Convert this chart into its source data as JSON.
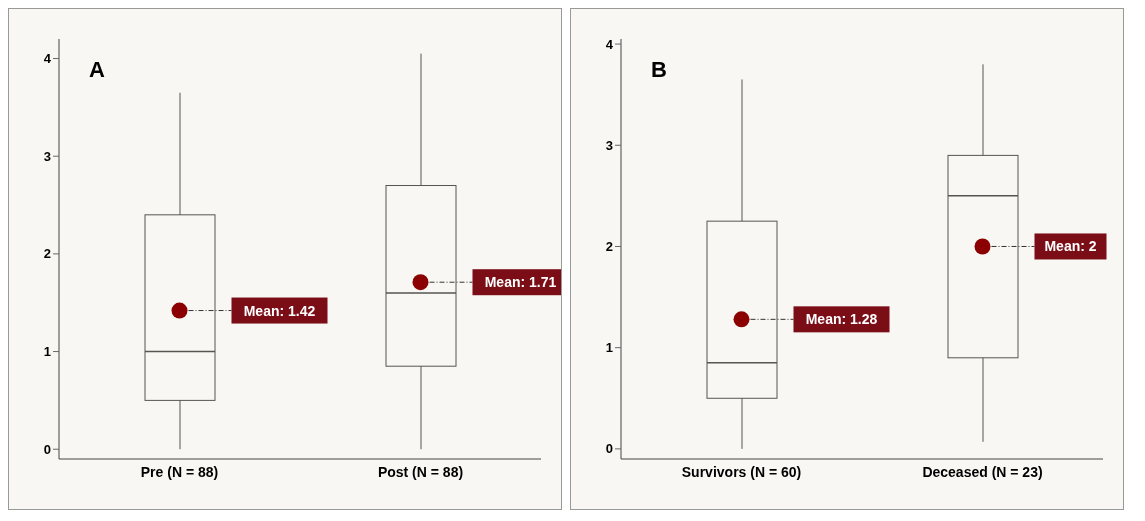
{
  "chart_data": [
    {
      "type": "box",
      "title": "A",
      "categories": [
        "Pre (N = 88)",
        "Post (N = 88)"
      ],
      "ylim": [
        -0.1,
        4.2
      ],
      "yticks": [
        0,
        1,
        2,
        3,
        4
      ],
      "grid": false,
      "boxes": [
        {
          "low": 0,
          "q1": 0.5,
          "median": 1.0,
          "q3": 2.4,
          "high": 3.65,
          "mean": 1.42
        },
        {
          "low": 0,
          "q1": 0.85,
          "median": 1.6,
          "q3": 2.7,
          "high": 4.05,
          "mean": 1.71
        }
      ],
      "annotations": [
        "Mean: 1.42",
        "Mean: 1.71"
      ]
    },
    {
      "type": "box",
      "title": "B",
      "categories": [
        "Survivors (N = 60)",
        "Deceased (N = 23)"
      ],
      "ylim": [
        -0.1,
        4.05
      ],
      "yticks": [
        0,
        1,
        2,
        3,
        4
      ],
      "grid": false,
      "boxes": [
        {
          "low": 0,
          "q1": 0.5,
          "median": 0.85,
          "q3": 2.25,
          "high": 3.65,
          "mean": 1.28
        },
        {
          "low": 0.07,
          "q1": 0.9,
          "median": 2.5,
          "q3": 2.9,
          "high": 3.8,
          "mean": 2
        }
      ],
      "annotations": [
        "Mean: 1.28",
        "Mean: 2"
      ]
    }
  ]
}
